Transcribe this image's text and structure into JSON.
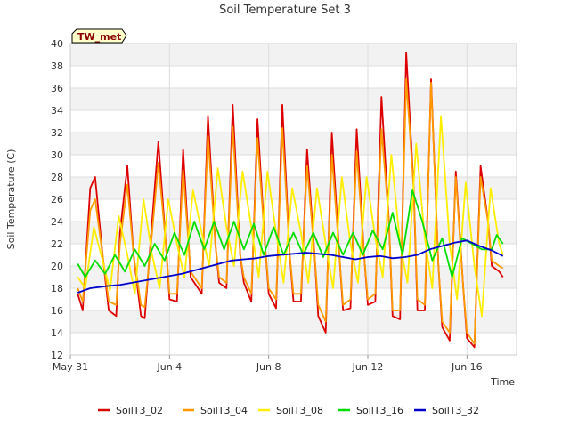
{
  "chart_data": {
    "type": "line",
    "title": "Soil Temperature Set 3",
    "xlabel": "Time",
    "ylabel": "Soil Temperature (C)",
    "badge": "TW_met",
    "ylim": [
      12,
      40
    ],
    "yticks": [
      12,
      14,
      16,
      18,
      20,
      22,
      24,
      26,
      28,
      30,
      32,
      34,
      36,
      38,
      40
    ],
    "xlim": [
      0,
      18
    ],
    "xticks": [
      {
        "x": 0,
        "label": "May 31"
      },
      {
        "x": 4,
        "label": "Jun 4"
      },
      {
        "x": 8,
        "label": "Jun 8"
      },
      {
        "x": 12,
        "label": "Jun 12"
      },
      {
        "x": 16,
        "label": "Jun 16"
      }
    ],
    "grid": true,
    "legend_position": "bottom",
    "series": [
      {
        "name": "SoilT3_02",
        "color": "#dd0000",
        "x": [
          0.3,
          0.5,
          0.8,
          1.0,
          1.3,
          1.55,
          1.85,
          2.0,
          2.3,
          2.55,
          2.85,
          3.0,
          3.3,
          3.55,
          3.85,
          4.0,
          4.3,
          4.55,
          4.85,
          5.0,
          5.3,
          5.55,
          5.85,
          6.0,
          6.3,
          6.55,
          6.85,
          7.0,
          7.3,
          7.55,
          7.85,
          8.0,
          8.3,
          8.55,
          8.85,
          9.0,
          9.3,
          9.55,
          9.85,
          10.0,
          10.3,
          10.55,
          10.85,
          11.0,
          11.3,
          11.55,
          11.85,
          12.0,
          12.3,
          12.55,
          12.85,
          13.0,
          13.3,
          13.55,
          13.85,
          14.0,
          14.3,
          14.55,
          14.85,
          15.0,
          15.3,
          15.55,
          15.85,
          16.0,
          16.3,
          16.55,
          16.85,
          17.0,
          17.3,
          17.45
        ],
        "y": [
          17.5,
          16.0,
          27.0,
          28.0,
          21.0,
          16.0,
          15.5,
          23.0,
          29.0,
          21.0,
          15.5,
          15.3,
          24.0,
          31.2,
          22.0,
          17.0,
          16.8,
          30.5,
          19.0,
          18.5,
          17.5,
          33.5,
          22.0,
          18.5,
          18.0,
          34.5,
          21.0,
          18.5,
          16.8,
          33.2,
          22.0,
          17.5,
          16.2,
          34.5,
          21.0,
          16.8,
          16.8,
          30.5,
          21.0,
          15.5,
          14.0,
          32.0,
          21.0,
          16.0,
          16.2,
          32.3,
          21.0,
          16.5,
          16.8,
          35.2,
          24.0,
          15.5,
          15.2,
          39.2,
          27.0,
          16.0,
          16.0,
          36.8,
          20.0,
          14.5,
          13.3,
          28.5,
          18.0,
          13.5,
          12.7,
          29.0,
          24.0,
          20.0,
          19.5,
          19.0
        ]
      },
      {
        "name": "SoilT3_04",
        "color": "#ff9900",
        "x": [
          0.3,
          0.5,
          0.8,
          1.0,
          1.3,
          1.55,
          1.85,
          2.0,
          2.3,
          2.55,
          2.85,
          3.0,
          3.3,
          3.55,
          3.85,
          4.0,
          4.3,
          4.55,
          4.85,
          5.0,
          5.3,
          5.55,
          5.85,
          6.0,
          6.3,
          6.55,
          6.85,
          7.0,
          7.3,
          7.55,
          7.85,
          8.0,
          8.3,
          8.55,
          8.85,
          9.0,
          9.3,
          9.55,
          9.85,
          10.0,
          10.3,
          10.55,
          10.85,
          11.0,
          11.3,
          11.55,
          11.85,
          12.0,
          12.3,
          12.55,
          12.85,
          13.0,
          13.3,
          13.55,
          13.85,
          14.0,
          14.3,
          14.55,
          14.85,
          15.0,
          15.3,
          15.55,
          15.85,
          16.0,
          16.3,
          16.55,
          16.85,
          17.0,
          17.3,
          17.45
        ],
        "y": [
          18.0,
          16.8,
          25.0,
          26.0,
          21.0,
          16.8,
          16.5,
          22.0,
          27.3,
          21.0,
          16.5,
          16.3,
          23.0,
          29.3,
          22.0,
          17.5,
          17.5,
          28.6,
          19.5,
          19.0,
          18.0,
          31.7,
          22.0,
          19.0,
          18.5,
          32.5,
          21.0,
          19.0,
          17.5,
          31.5,
          22.0,
          18.0,
          17.0,
          32.4,
          21.0,
          17.5,
          17.5,
          29.0,
          21.0,
          16.5,
          15.0,
          30.0,
          21.0,
          16.5,
          17.0,
          30.3,
          21.0,
          17.0,
          17.5,
          32.3,
          24.0,
          16.0,
          16.0,
          36.8,
          27.0,
          17.0,
          16.5,
          36.5,
          20.0,
          15.0,
          14.0,
          28.0,
          18.0,
          14.0,
          13.0,
          28.0,
          24.0,
          20.5,
          20.0,
          19.8
        ]
      },
      {
        "name": "SoilT3_08",
        "color": "#ffee00",
        "x": [
          0.3,
          0.6,
          0.95,
          1.3,
          1.6,
          1.95,
          2.3,
          2.6,
          2.95,
          3.3,
          3.6,
          3.95,
          4.3,
          4.6,
          4.95,
          5.3,
          5.6,
          5.95,
          6.3,
          6.6,
          6.95,
          7.3,
          7.6,
          7.95,
          8.3,
          8.6,
          8.95,
          9.3,
          9.6,
          9.95,
          10.3,
          10.6,
          10.95,
          11.3,
          11.6,
          11.95,
          12.3,
          12.6,
          12.95,
          13.3,
          13.6,
          13.95,
          14.3,
          14.6,
          14.95,
          15.3,
          15.6,
          15.95,
          16.3,
          16.6,
          16.95,
          17.3,
          17.45
        ],
        "y": [
          19.0,
          18.0,
          23.5,
          20.5,
          17.8,
          24.5,
          21.0,
          17.5,
          26.0,
          21.0,
          18.0,
          26.0,
          22.0,
          19.0,
          26.8,
          23.0,
          20.0,
          28.8,
          23.5,
          20.0,
          28.5,
          23.5,
          19.0,
          28.5,
          23.0,
          18.5,
          27.0,
          23.0,
          18.5,
          27.0,
          22.0,
          18.0,
          28.0,
          22.0,
          18.5,
          28.0,
          22.5,
          19.0,
          30.0,
          22.0,
          18.5,
          31.0,
          22.5,
          18.0,
          33.5,
          22.0,
          17.0,
          27.5,
          20.0,
          15.5,
          27.0,
          22.0,
          21.0
        ]
      },
      {
        "name": "SoilT3_16",
        "color": "#00dd00",
        "x": [
          0.3,
          0.6,
          1.0,
          1.4,
          1.8,
          2.2,
          2.6,
          3.0,
          3.4,
          3.8,
          4.2,
          4.6,
          5.0,
          5.4,
          5.8,
          6.2,
          6.6,
          7.0,
          7.4,
          7.8,
          8.2,
          8.6,
          9.0,
          9.4,
          9.8,
          10.2,
          10.6,
          11.0,
          11.4,
          11.8,
          12.2,
          12.6,
          13.0,
          13.4,
          13.8,
          14.2,
          14.6,
          15.0,
          15.4,
          15.8,
          16.2,
          16.6,
          17.0,
          17.2,
          17.45
        ],
        "y": [
          20.2,
          19.0,
          20.5,
          19.3,
          21.0,
          19.5,
          21.5,
          20.0,
          22.0,
          20.5,
          23.0,
          21.0,
          24.0,
          21.5,
          24.0,
          21.5,
          24.0,
          21.5,
          23.8,
          21.0,
          23.5,
          21.0,
          23.0,
          21.0,
          23.0,
          20.8,
          23.0,
          21.0,
          23.0,
          21.0,
          23.2,
          21.5,
          24.8,
          21.0,
          26.8,
          24.0,
          20.5,
          22.5,
          19.0,
          22.5,
          22.0,
          21.5,
          21.5,
          22.8,
          22.0
        ]
      },
      {
        "name": "SoilT3_32",
        "color": "#0000cc",
        "x": [
          0.3,
          0.8,
          1.5,
          2.0,
          2.5,
          3.0,
          3.5,
          4.0,
          4.5,
          5.0,
          5.5,
          6.0,
          6.5,
          7.0,
          7.5,
          8.0,
          8.5,
          9.0,
          9.5,
          10.0,
          10.5,
          11.0,
          11.5,
          12.0,
          12.5,
          13.0,
          13.5,
          14.0,
          14.5,
          15.0,
          15.5,
          16.0,
          16.5,
          17.0,
          17.45
        ],
        "y": [
          17.6,
          18.0,
          18.2,
          18.3,
          18.5,
          18.7,
          18.9,
          19.1,
          19.3,
          19.6,
          19.9,
          20.2,
          20.5,
          20.6,
          20.7,
          20.9,
          21.0,
          21.1,
          21.2,
          21.1,
          21.0,
          20.8,
          20.6,
          20.8,
          20.9,
          20.7,
          20.8,
          21.0,
          21.5,
          21.8,
          22.1,
          22.3,
          21.8,
          21.4,
          20.9
        ]
      }
    ]
  }
}
